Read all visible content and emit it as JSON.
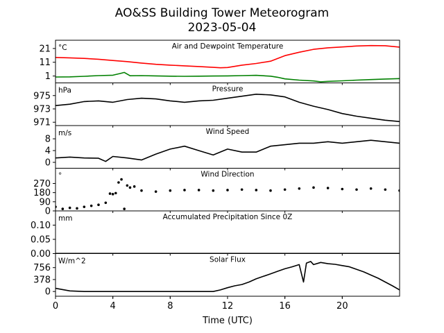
{
  "figure": {
    "title_line1": "AO&SS Building Tower Meteorogram",
    "title_line2": "2023-05-04",
    "xlabel": "Time (UTC)",
    "x_ticks": [
      0,
      4,
      8,
      12,
      16,
      20
    ],
    "x_range": [
      0,
      24
    ]
  },
  "chart_data": [
    {
      "type": "line",
      "title": "Air and Dewpoint Temperature",
      "unit": "°C",
      "ylim": [
        -4,
        27
      ],
      "yticks": [
        1,
        11,
        21
      ],
      "series": [
        {
          "color": "#ff0000",
          "x": [
            0,
            1,
            2,
            3,
            4,
            5,
            6,
            7,
            8,
            9,
            10,
            11,
            11.5,
            12,
            13,
            14,
            15,
            16,
            17,
            18,
            19,
            20,
            21,
            22,
            23,
            24
          ],
          "y": [
            14.5,
            14.2,
            13.8,
            13.2,
            12.3,
            11.5,
            10.4,
            9.5,
            8.9,
            8.4,
            7.9,
            7.3,
            7.0,
            7.2,
            8.9,
            10.1,
            11.8,
            15.8,
            18.3,
            20.4,
            21.5,
            22.1,
            22.8,
            23.1,
            23.0,
            22.0
          ]
        },
        {
          "color": "#008000",
          "x": [
            0,
            1,
            2,
            3,
            4,
            4.5,
            4.8,
            5.2,
            6,
            7,
            8,
            9,
            10,
            11,
            12,
            13,
            14,
            15,
            15.5,
            16,
            17,
            18,
            18.5,
            19,
            20,
            21,
            22,
            23,
            24
          ],
          "y": [
            0.3,
            0.4,
            0.8,
            1.3,
            1.6,
            2.8,
            3.6,
            1.2,
            1.3,
            1.1,
            0.9,
            0.8,
            0.9,
            1.0,
            1.1,
            1.3,
            1.5,
            0.9,
            0.1,
            -1.1,
            -2.0,
            -2.6,
            -3.2,
            -2.9,
            -2.5,
            -2.0,
            -1.6,
            -1.2,
            -0.9
          ]
        }
      ]
    },
    {
      "type": "line",
      "title": "Pressure",
      "unit": "hPa",
      "ylim": [
        970.5,
        976.9
      ],
      "yticks": [
        971,
        973,
        975
      ],
      "series": [
        {
          "color": "#000000",
          "x": [
            0,
            1,
            2,
            3,
            4,
            5,
            6,
            7,
            8,
            9,
            10,
            11,
            12,
            13,
            14,
            15,
            16,
            17,
            18,
            19,
            20,
            21,
            22,
            23,
            24
          ],
          "y": [
            973.5,
            973.7,
            974.1,
            974.2,
            974.0,
            974.4,
            974.6,
            974.5,
            974.2,
            974.0,
            974.2,
            974.3,
            974.6,
            974.9,
            975.2,
            975.1,
            974.8,
            974.0,
            973.4,
            972.9,
            972.3,
            971.9,
            971.6,
            971.3,
            971.1
          ]
        }
      ]
    },
    {
      "type": "line",
      "title": "Wind Speed",
      "unit": "m/s",
      "ylim": [
        -2,
        12.5
      ],
      "yticks": [
        0,
        4,
        8
      ],
      "series": [
        {
          "color": "#000000",
          "x": [
            0,
            1,
            2,
            3,
            3.5,
            4,
            5,
            6,
            7,
            8,
            9,
            10,
            11,
            12,
            13,
            14,
            15,
            16,
            17,
            18,
            19,
            20,
            21,
            22,
            23,
            24
          ],
          "y": [
            1.5,
            1.8,
            1.5,
            1.4,
            0.3,
            2.0,
            1.5,
            0.8,
            2.8,
            4.5,
            5.5,
            4.0,
            2.5,
            4.5,
            3.5,
            3.5,
            5.5,
            6.0,
            6.5,
            6.5,
            7.0,
            6.5,
            7.0,
            7.5,
            7.0,
            6.5
          ]
        }
      ]
    },
    {
      "type": "scatter",
      "title": "Wind Direction",
      "unit": "°",
      "ylim": [
        0,
        420
      ],
      "yticks": [
        0,
        90,
        180,
        270
      ],
      "series": [
        {
          "color": "#000000",
          "x": [
            0,
            0.5,
            1,
            1.5,
            2,
            2.5,
            3,
            3.5,
            3.8,
            4,
            4.2,
            4.4,
            4.6,
            4.8,
            5,
            5.2,
            5.5,
            6,
            7,
            8,
            9,
            10,
            11,
            12,
            13,
            14,
            15,
            16,
            17,
            18,
            19,
            20,
            21,
            22,
            23,
            24
          ],
          "y": [
            40,
            20,
            30,
            25,
            40,
            50,
            60,
            80,
            170,
            165,
            175,
            280,
            310,
            20,
            250,
            230,
            240,
            200,
            190,
            200,
            205,
            205,
            200,
            205,
            210,
            205,
            200,
            210,
            220,
            230,
            225,
            215,
            210,
            220,
            210,
            200
          ]
        }
      ]
    },
    {
      "type": "line",
      "title": "Accumulated Precipitation Since 0Z",
      "unit": "mm",
      "ylim": [
        0,
        0.15
      ],
      "yticks": [
        0.0,
        0.05,
        0.1
      ],
      "ytick_labels": [
        "0.00",
        "0.05",
        "0.10"
      ],
      "series": [
        {
          "color": "#000000",
          "x": [
            0,
            24
          ],
          "y": [
            0,
            0
          ]
        }
      ]
    },
    {
      "type": "line",
      "title": "Solar Flux",
      "unit": "W/m^2",
      "ylim": [
        -150,
        1200
      ],
      "yticks": [
        0,
        378,
        756
      ],
      "series": [
        {
          "color": "#000000",
          "x": [
            0,
            0.5,
            1,
            2,
            4,
            6,
            8,
            10,
            11,
            11.5,
            12,
            12.5,
            13,
            13.5,
            14,
            14.5,
            15,
            15.5,
            16,
            16.5,
            17,
            17.3,
            17.5,
            17.8,
            18,
            18.5,
            19,
            19.5,
            20,
            20.5,
            21,
            21.5,
            22,
            22.5,
            23,
            23.5,
            24
          ],
          "y": [
            100,
            60,
            20,
            0,
            0,
            0,
            0,
            0,
            0,
            50,
            120,
            180,
            220,
            300,
            400,
            480,
            560,
            640,
            720,
            780,
            850,
            300,
            900,
            950,
            850,
            920,
            880,
            860,
            820,
            780,
            700,
            620,
            520,
            420,
            300,
            180,
            50
          ]
        }
      ]
    }
  ]
}
